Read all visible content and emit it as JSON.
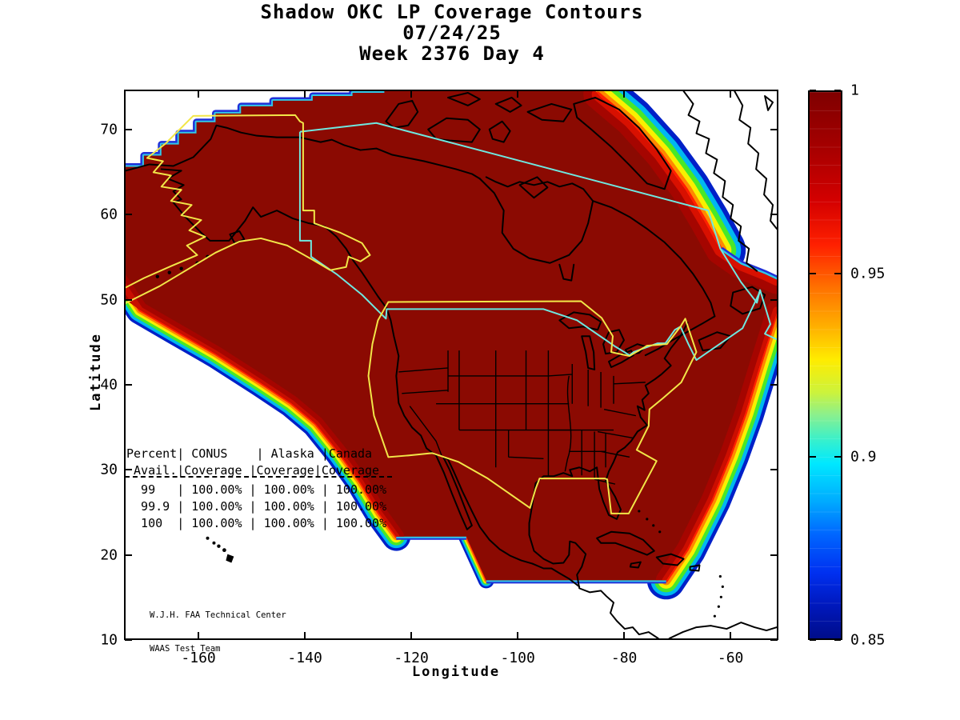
{
  "title": {
    "line1": "Shadow OKC LP Coverage Contours",
    "line2": "07/24/25",
    "line3": "Week 2376 Day 4"
  },
  "axes": {
    "x_label": "Longitude",
    "y_label": "Latitude",
    "x_ticks": [
      -160,
      -140,
      -120,
      -100,
      -80,
      -60
    ],
    "y_ticks": [
      10,
      20,
      30,
      40,
      50,
      60,
      70
    ],
    "x_range": [
      -174,
      -51
    ],
    "y_range": [
      10,
      74.7
    ]
  },
  "colorbar": {
    "min": 0.85,
    "max": 1,
    "tick_labels": [
      "1",
      "0.95",
      "0.9",
      "0.85"
    ],
    "tick_values": [
      1,
      0.95,
      0.9,
      0.85
    ],
    "colormap": "jet"
  },
  "coverage_table": {
    "lines": [
      "Percent| CONUS    | Alaska |Canada",
      " Avail.|Coverage |Coverage|Coverage",
      "  99   | 100.00% | 100.00% | 100.00%",
      "  99.9 | 100.00% | 100.00% | 100.00%",
      "  100  | 100.00% | 100.00% | 100.00%"
    ],
    "columns": [
      "Percent Avail.",
      "CONUS Coverage",
      "Alaska Coverage",
      "Canada Coverage"
    ],
    "rows": [
      [
        "99",
        "100.00%",
        "100.00%",
        "100.00%"
      ],
      [
        "99.9",
        "100.00%",
        "100.00%",
        "100.00%"
      ],
      [
        "100",
        "100.00%",
        "100.00%",
        "100.00%"
      ]
    ]
  },
  "credit": {
    "line1": "W.J.H. FAA Technical Center",
    "line2": "WAAS Test Team"
  },
  "colors": {
    "coverage_fill": "#8B0A02",
    "conus_alaska_outline": "#F2E648",
    "canada_outline": "#6FE8E0",
    "coastline": "#000000",
    "band_blue": "#0020C8",
    "band_cyan": "#00B8F0",
    "band_green": "#48E828",
    "band_yellow": "#F8F000",
    "band_orange": "#FF8800",
    "band_red": "#FF2000"
  },
  "chart_data": {
    "type": "heatmap",
    "title": "Shadow OKC LP Coverage Contours 07/24/25 Week 2376 Day 4",
    "xlabel": "Longitude",
    "ylabel": "Latitude",
    "x_ticks": [
      -160,
      -140,
      -120,
      -100,
      -80,
      -60
    ],
    "y_ticks": [
      10,
      20,
      30,
      40,
      50,
      60,
      70
    ],
    "xlim": [
      -174,
      -51
    ],
    "ylim": [
      10,
      74.7
    ],
    "colorbar": {
      "min": 0.85,
      "max": 1,
      "ticks": [
        1,
        0.95,
        0.9,
        0.85
      ],
      "colormap": "jet"
    },
    "description": "LP availability contours over North America; interior of coverage region saturated at 1.0 (dark red) with rainbow gradient bands down to 0.85 (blue) at the outer boundary over the Pacific, Atlantic and near Greenland.",
    "regions": [
      {
        "name": "CONUS",
        "outline_color": "#F2E648",
        "coverage": {
          "99": "100.00%",
          "99.9": "100.00%",
          "100": "100.00%"
        }
      },
      {
        "name": "Alaska",
        "outline_color": "#F2E648",
        "coverage": {
          "99": "100.00%",
          "99.9": "100.00%",
          "100": "100.00%"
        }
      },
      {
        "name": "Canada",
        "outline_color": "#6FE8E0",
        "coverage": {
          "99": "100.00%",
          "99.9": "100.00%",
          "100": "100.00%"
        }
      }
    ]
  }
}
